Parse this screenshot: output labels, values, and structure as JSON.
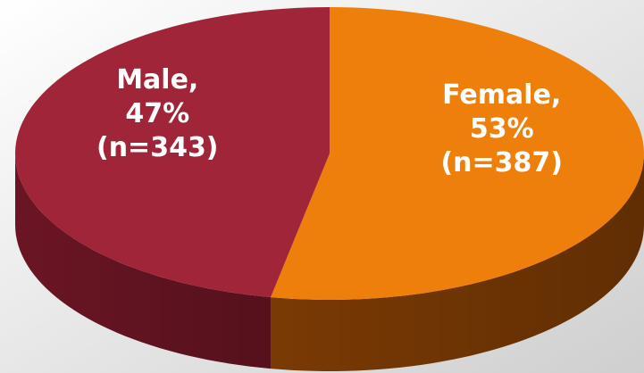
{
  "chart_data": {
    "type": "pie",
    "three_d": true,
    "categories": [
      "Female,",
      "Male,"
    ],
    "values": [
      53,
      47
    ],
    "value_labels": [
      "53%",
      "47%"
    ],
    "counts": [
      387,
      343
    ],
    "count_labels": [
      "(n=387)",
      "(n=343)"
    ],
    "colors": [
      "#ee7f0b",
      "#a12539"
    ],
    "side_colors": [
      "#7a3a04",
      "#6b1524"
    ],
    "start_angle": -90
  }
}
